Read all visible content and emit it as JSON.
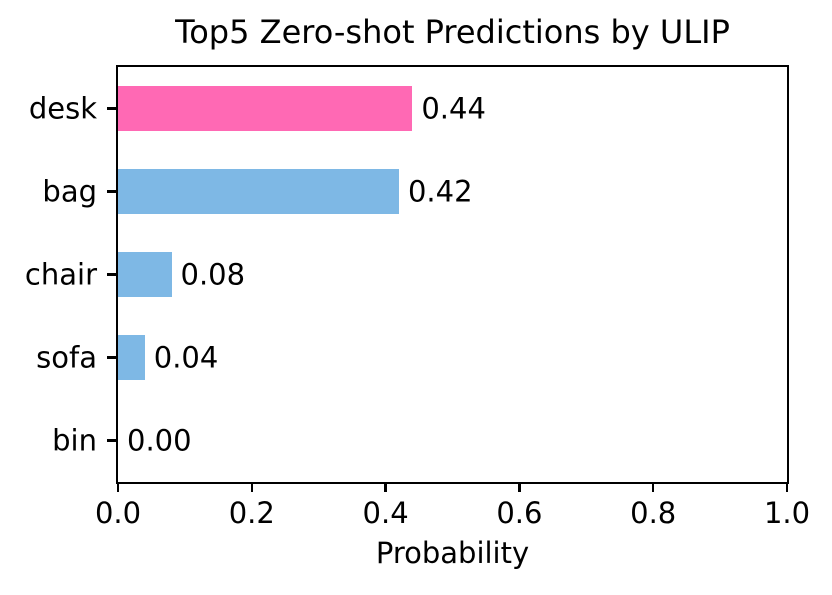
{
  "chart_data": {
    "type": "bar",
    "orientation": "horizontal",
    "title": "Top5 Zero-shot Predictions by ULIP",
    "xlabel": "Probability",
    "categories": [
      "desk",
      "bag",
      "chair",
      "sofa",
      "bin"
    ],
    "values": [
      0.44,
      0.42,
      0.08,
      0.04,
      0.0
    ],
    "value_labels": [
      "0.44",
      "0.42",
      "0.08",
      "0.04",
      "0.00"
    ],
    "bar_colors": [
      "#FF69B4",
      "#7EB8E5",
      "#7EB8E5",
      "#7EB8E5",
      "#7EB8E5"
    ],
    "xlim": [
      0.0,
      1.0
    ],
    "x_ticks": [
      "0.0",
      "0.2",
      "0.4",
      "0.6",
      "0.8",
      "1.0"
    ],
    "x_tick_values": [
      0.0,
      0.2,
      0.4,
      0.6,
      0.8,
      1.0
    ],
    "grid": false,
    "highlight_color": "#FF69B4",
    "default_bar_color": "#7EB8E5",
    "axis_color": "#000000",
    "text_color": "#000000",
    "background_color": "#ffffff"
  }
}
